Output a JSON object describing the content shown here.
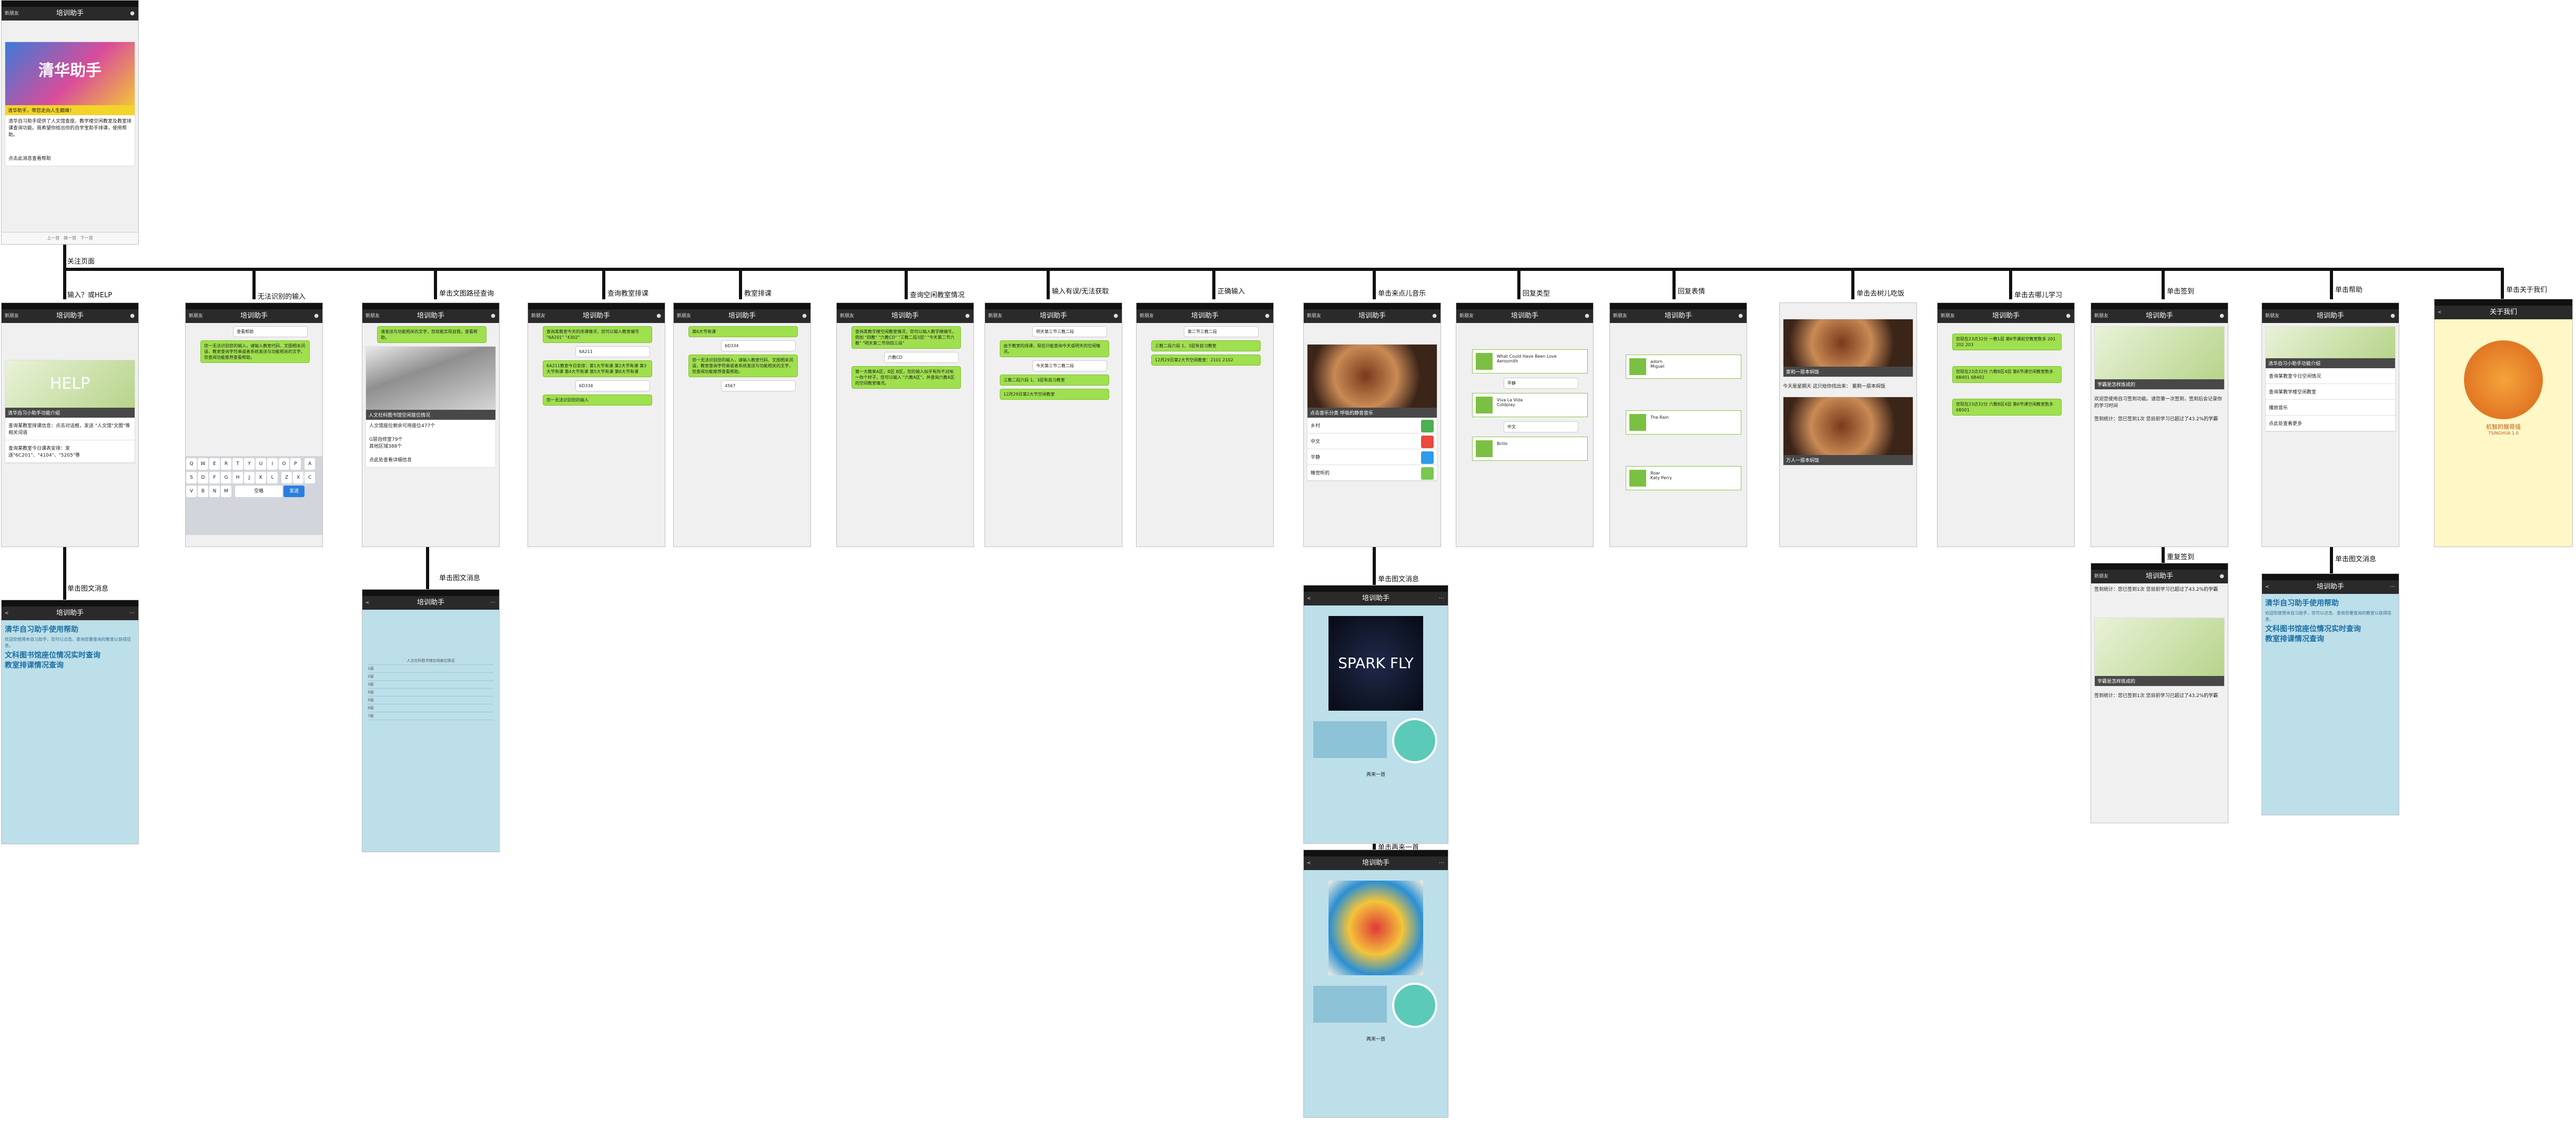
{
  "app_title": "培训助手",
  "nav_back": "新朋友",
  "top_screen": {
    "banner": "清华助手",
    "caption": "清华助手，带您走向人生巅峰！",
    "text": "清华自习助手提供了人文馆查座、教学楼空闲教室及教室排课查询功能。我希望你给出你的自学宝助手排课，使用帮助。",
    "hint": "点击此消息查看帮助"
  },
  "labels": {
    "follow": "关注页面",
    "input_help": "输入？或HELP",
    "invalid": "无法识别的输入",
    "single_text": "单击文图路径查询",
    "query_class": "查询教室排课",
    "class_sched": "教室排课",
    "query_free": "查询空闲教室情况",
    "input_err": "输入有误/无法获取",
    "reentry": "正确输入",
    "tap_music": "单击来点儿音乐",
    "reply_type": "回复类型",
    "reply_emotion": "回复表情",
    "tap_treehole": "单击去树儿吃饭",
    "tap_study": "单击去哪儿学习",
    "tap_checkin": "单击签到",
    "tap_help": "单击帮助",
    "tap_about": "单击关于我们",
    "tap_text_msg1": "单击图文消息",
    "tap_text_msg2": "单击图文消息",
    "tap_text_msg3": "单击图文消息",
    "tap_text_msg4": "单击图文消息",
    "repeat_checkin": "重复签到",
    "tap_another": "单击再来一首"
  },
  "screens": {
    "help": {
      "banner": "HELP",
      "caption": "清华自习小助手功能介绍",
      "rows": [
        "查询某教室排课信息：点击对话框，发送 \"人文馆\"文图\"等相关词语",
        "查询某教室今日课表安排：发送\"6C201\"、\"4104\"、\"5205\"等"
      ]
    },
    "invalid": {
      "msg": "您一无法识别您的输入，请输入教室代码、文图相关词语，教室查询字符串或者系统发送与功能相关的文字，您查阅功能推荐查看帮助。",
      "me": "查看帮助",
      "keys": [
        "Q",
        "W",
        "E",
        "R",
        "T",
        "Y",
        "U",
        "I",
        "O",
        "P",
        "A",
        "S",
        "D",
        "F",
        "G",
        "H",
        "J",
        "K",
        "L",
        "Z",
        "X",
        "C",
        "V",
        "B",
        "N",
        "M"
      ],
      "space": "空格",
      "send": "发送"
    },
    "text_query": {
      "bubble": "请发送与功能相关的文字，您就能实现自我，查看帮助。",
      "caption": "人文社科图书馆空闲座位情况",
      "text1": "人文馆座位剩余可用座位477个",
      "text2": "G层自修室79个",
      "text3": "其他区域388个",
      "hint": "点此处查看详细信息"
    },
    "class_query": {
      "b1": "查询某教室今天的排课情况，您可以输入教室编号 \"6A201\" \"4302\"",
      "me1": "6A211",
      "b2": "6A211教室今日安排：第1大节有课 第2大节有课 第3大节有课 第4大节有课 第5大节有课 第6大节有课",
      "me2": "6D334",
      "b3": "您一无法识别您的输入"
    },
    "class_sched": {
      "b1": "第6大节有课",
      "me1": "6D334",
      "b2": "您一无法识别您的输入，请输入教室代码、文图相关词语，教室查询字符串或者系统发送与功能相关的文字，您查阅功能推荐查看帮助。",
      "me2": "4567"
    },
    "free_room": {
      "b1": "查询某教学楼空闲教室情况，您可以输入教学楼编号，例如 \"四教\" \"六教CD\" \"三教二段3层\" \"今天第二节六教\" \"明天第二节到四三段\"",
      "me1": "六教CD",
      "b2": "第一大教来A区，B区 B区，您的输入似乎有所不对呦～你个样子，您可以输入 \"六教A区\"，并查询六教A区的空间教室情况。"
    },
    "input_err": {
      "b1": "明天第三节三教二段",
      "b2": "由于教室的排课，现在只能查询今天或明天的空闲情况。",
      "b3": "今天第三节二教二段",
      "b4": "三教二段六段 1、3层有自习教室",
      "b5": "12月29日第2大节空闲教室"
    },
    "reentry": {
      "b1": "第二节三教二段",
      "b2": "三教二段六段 1、3层有自习教室",
      "b3": "12月29日第2大节空闲教室：2101 2102"
    },
    "music": {
      "caption": "点击音乐分类 呼吸的静音音乐",
      "items": [
        "乡村",
        "中文",
        "平静",
        "睡觉听的"
      ]
    },
    "reply": {
      "songs": [
        {
          "title": "What Could Have Been Love",
          "artist": "Aerosmith"
        },
        {
          "title": "Viva La Vida",
          "artist": "Coldplay"
        },
        {
          "title": "Brillo",
          "artist": ""
        }
      ],
      "tags": [
        "平静",
        "中文"
      ]
    },
    "emotion": {
      "songs": [
        {
          "title": "adorn",
          "artist": "Miguel"
        },
        {
          "title": "The Rain",
          "artist": ""
        },
        {
          "title": "Roar",
          "artist": "Katy Perry"
        }
      ]
    },
    "treehole": {
      "c1": "家和一层本焖饭",
      "t1": "今天是星期天 这只给你找出来： 紫荆一层本焖饭",
      "c2": "万人一层本焖饭"
    },
    "study": {
      "b1": "您现在23点32分 一教1层 第6节课前空教室数多 201 202 203",
      "b2": "您现在23点32分 六教B区4层 第6节课空闲教室数多 6B401 6B402",
      "b3": "您现在23点32分 六教B区4层 第6节课空闲教室数多 6B501"
    },
    "checkin": {
      "caption": "学霸是怎样炼成的",
      "text": "欢迎您使用自习签到功能。请您第一次签到，签到后会记录你的学习时间",
      "status": "签到统计：您已签到1次 您目前学习已超过了43.2%的学霸"
    },
    "help2": {
      "caption": "清华自习小助手功能介绍",
      "rows": [
        "查询某教室今日空闲情况",
        "查询某教学楼空闲教室",
        "播放音乐",
        "点此处查看更多"
      ]
    },
    "about": {
      "title": "关于我们",
      "name": "机智的猴哥插",
      "sub": "TSINGHUA 1.0"
    },
    "help_page": {
      "title": "清华自习助手使用帮助",
      "h2": "文科图书馆座位情况实时查询",
      "h3": "教室排课情况查询",
      "body": "欢迎您使用本自习助手，您可以点击、查询您要查询的教室以获得信息。"
    },
    "table_page": {
      "title": "人文社科图书馆空闲座位情况",
      "rows": [
        "1层",
        "2层",
        "3层",
        "4层",
        "5层",
        "6层",
        "7层"
      ]
    },
    "music_page1": {
      "cover": "SPARK FLY",
      "action": "再来一首"
    },
    "music_page2": {
      "cover": "",
      "action": "再来一首"
    }
  },
  "bottom_bar": [
    "上一首",
    "换一首",
    "下一首"
  ]
}
